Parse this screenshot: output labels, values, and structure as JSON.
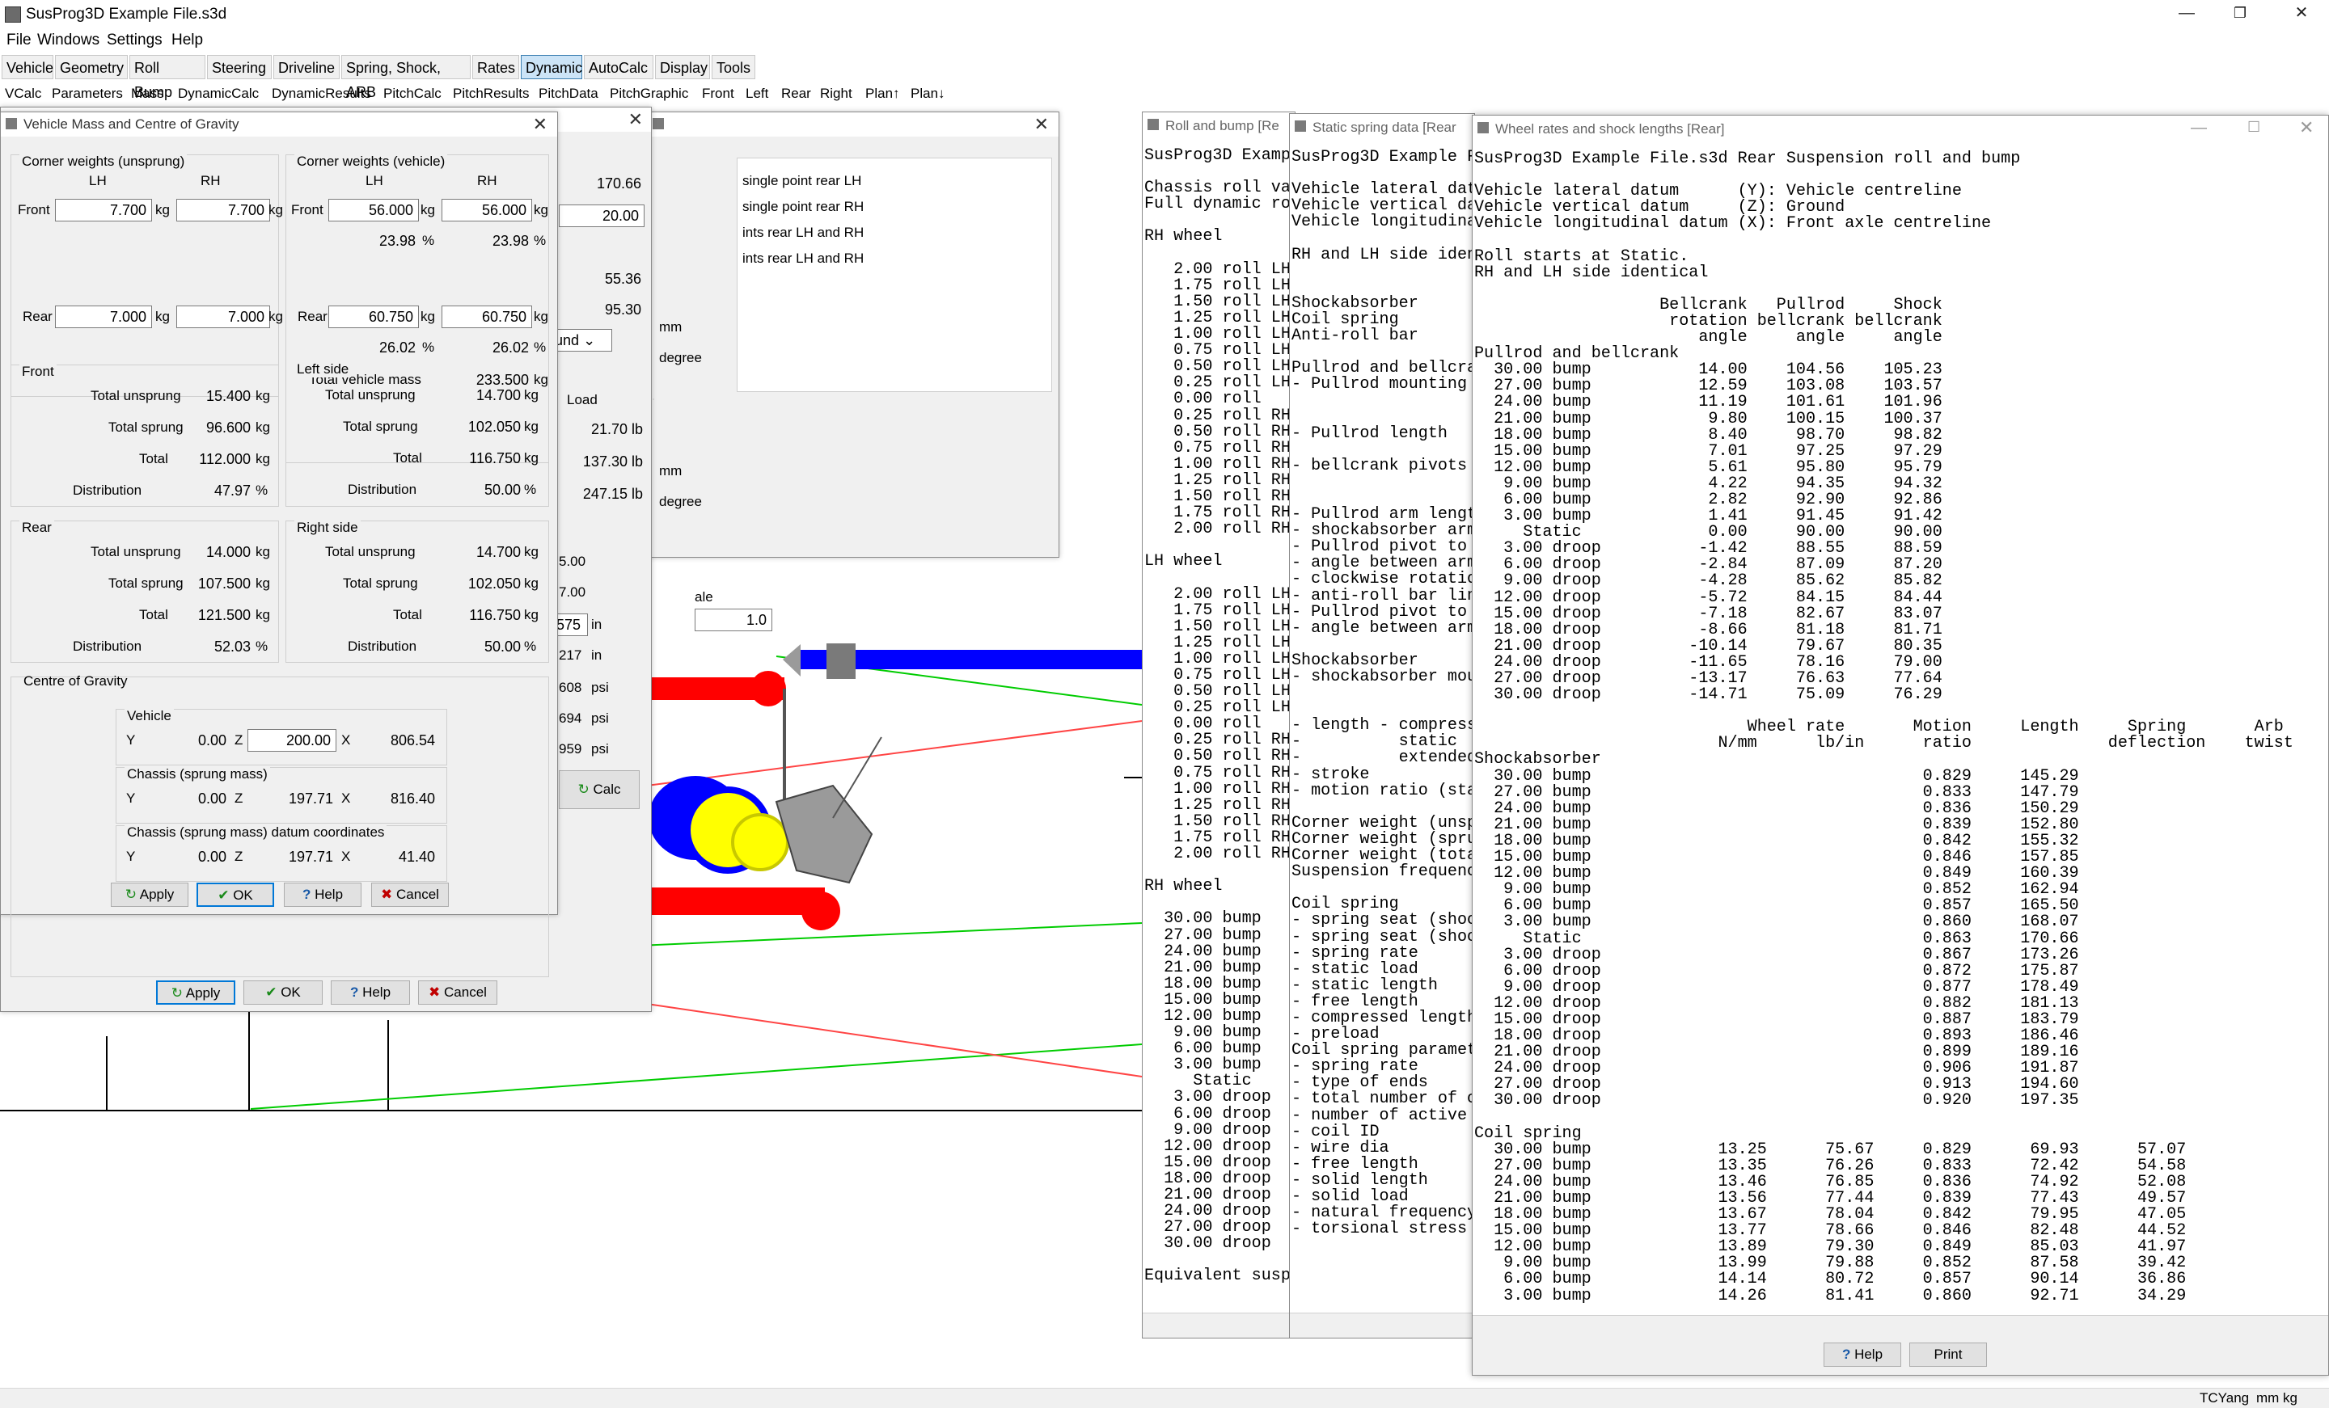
{
  "app": {
    "title": "SusProg3D Example File.s3d",
    "minimize": "—",
    "restore": "❐",
    "close": "✕"
  },
  "menu": [
    "File",
    "Windows",
    "Settings",
    "Help"
  ],
  "toolbar1": [
    "Vehicle",
    "Geometry",
    "Roll Bump",
    "Steering",
    "Driveline",
    "Spring, Shock, ARB",
    "Rates",
    "Dynamic",
    "AutoCalc",
    "Display",
    "Tools"
  ],
  "toolbar1_active": "Dynamic",
  "toolbar2": [
    "VCalc",
    "Parameters",
    "Mass",
    "DynamicCalc",
    "DynamicResults",
    "PitchCalc",
    "PitchResults",
    "PitchData",
    "PitchGraphic",
    "Front",
    "Left",
    "Rear",
    "Right",
    "Plan↑",
    "Plan↓"
  ],
  "bg_dialog_a": {
    "values": [
      "170.66",
      "20.00",
      "55.36",
      "95.30"
    ],
    "unit_mm": "mm",
    "unit_degree": "degree",
    "combo": "und",
    "load_label": "Load",
    "loads": [
      "21.70 lb",
      "137.30 lb",
      "247.15 lb"
    ],
    "unit_mm2": "mm",
    "unit_degree2": "degree",
    "partial": [
      "5.00",
      "7.00",
      "575",
      "217",
      "608",
      "694",
      "959"
    ],
    "partial_units": [
      "in",
      "in",
      "psi",
      "psi",
      "psi"
    ],
    "calc": "Calc",
    "ale": "ale",
    "scale_value": "1.0"
  },
  "bg_dialog_b": {
    "items": [
      "single point rear LH",
      "single point rear RH",
      "ints rear LH and RH",
      "ints rear LH and RH"
    ]
  },
  "bg_dialog_buttons": {
    "apply": "Apply",
    "ok": "OK",
    "help": "Help",
    "cancel": "Cancel"
  },
  "mass_dialog": {
    "title": "Vehicle Mass and Centre of Gravity",
    "cw_unsprung": {
      "label": "Corner weights (unsprung)",
      "lh": "LH",
      "rh": "RH",
      "front": "Front",
      "rear": "Rear",
      "front_lh": "7.700",
      "front_rh": "7.700",
      "rear_lh": "7.000",
      "rear_rh": "7.000",
      "unit": "kg"
    },
    "cw_vehicle": {
      "label": "Corner weights (vehicle)",
      "lh": "LH",
      "rh": "RH",
      "front": "Front",
      "rear": "Rear",
      "front_lh": "56.000",
      "front_rh": "56.000",
      "front_lh_pct": "23.98",
      "front_rh_pct": "23.98",
      "rear_lh": "60.750",
      "rear_rh": "60.750",
      "rear_lh_pct": "26.02",
      "rear_rh_pct": "26.02",
      "total_label": "Total vehicle mass",
      "total": "233.500",
      "unit": "kg",
      "pct": "%"
    },
    "front": {
      "label": "Front",
      "tu_l": "Total unsprung",
      "tu": "15.400",
      "ts_l": "Total sprung",
      "ts": "96.600",
      "t_l": "Total",
      "t": "112.000",
      "d_l": "Distribution",
      "d": "47.97"
    },
    "left": {
      "label": "Left side",
      "tu_l": "Total unsprung",
      "tu": "14.700",
      "ts_l": "Total sprung",
      "ts": "102.050",
      "t_l": "Total",
      "t": "116.750",
      "d_l": "Distribution",
      "d": "50.00"
    },
    "rear": {
      "label": "Rear",
      "tu_l": "Total unsprung",
      "tu": "14.000",
      "ts_l": "Total sprung",
      "ts": "107.500",
      "t_l": "Total",
      "t": "121.500",
      "d_l": "Distribution",
      "d": "52.03"
    },
    "right": {
      "label": "Right side",
      "tu_l": "Total unsprung",
      "tu": "14.700",
      "ts_l": "Total sprung",
      "ts": "102.050",
      "t_l": "Total",
      "t": "116.750",
      "d_l": "Distribution",
      "d": "50.00"
    },
    "cog": {
      "label": "Centre of Gravity",
      "vehicle": "Vehicle",
      "v_y": "0.00",
      "v_z": "200.00",
      "v_x": "806.54",
      "chassis": "Chassis (sprung mass)",
      "c_y": "0.00",
      "c_z": "197.71",
      "c_x": "816.40",
      "datum": "Chassis (sprung mass) datum coordinates",
      "d_y": "0.00",
      "d_z": "197.71",
      "d_x": "41.40",
      "y": "Y",
      "z": "Z",
      "x": "X"
    },
    "buttons": {
      "apply": "Apply",
      "ok": "OK",
      "help": "Help",
      "cancel": "Cancel"
    }
  },
  "roll_window": {
    "title": "Roll and bump [Re",
    "text": "SusProg3D Examp\n\nChassis roll va\nFull dynamic ro\n\nRH wheel\n\n   2.00 roll LH\n   1.75 roll LH\n   1.50 roll LH\n   1.25 roll LH\n   1.00 roll LH\n   0.75 roll LH\n   0.50 roll LH\n   0.25 roll LH\n   0.00 roll\n   0.25 roll RH\n   0.50 roll RH\n   0.75 roll RH\n   1.00 roll RH\n   1.25 roll RH\n   1.50 roll RH\n   1.75 roll RH\n   2.00 roll RH\n\nLH wheel\n\n   2.00 roll LH\n   1.75 roll LH\n   1.50 roll LH\n   1.25 roll LH\n   1.00 roll LH\n   0.75 roll LH\n   0.50 roll LH\n   0.25 roll LH\n   0.00 roll\n   0.25 roll RH\n   0.50 roll RH\n   0.75 roll RH\n   1.00 roll RH\n   1.25 roll RH\n   1.50 roll RH\n   1.75 roll RH\n   2.00 roll RH\n\nRH wheel\n\n  30.00 bump\n  27.00 bump\n  24.00 bump\n  21.00 bump\n  18.00 bump\n  15.00 bump\n  12.00 bump\n   9.00 bump\n   6.00 bump\n   3.00 bump\n     Static\n   3.00 droop\n   6.00 droop\n   9.00 droop\n  12.00 droop\n  15.00 droop\n  18.00 droop\n  21.00 droop\n  24.00 droop\n  27.00 droop\n  30.00 droop\n\nEquivalent susp"
  },
  "static_window": {
    "title": "Static spring data [Rear",
    "text": "SusProg3D Example F\n\nVehicle lateral dat\nVehicle vertical da\nVehicle longitudina\n\nRH and LH side iden\n\n\nShockabsorber\nCoil spring\nAnti-roll bar\n\nPullrod and bellcra\n- Pullrod mounting \n\n\n- Pullrod length\n\n- bellcrank pivots \n\n\n- Pullrod arm lengt\n- shockabsorber arm\n- Pullrod pivot to \n- angle between arm\n- clockwise rotatio\n- anti-roll bar lin\n- Pullrod pivot to \n- angle between arm\n\nShockabsorber\n- shockabsorber mou\n\n\n- length - compress\n-          static\n-          extended\n- stroke\n- motion ratio (sta\n\nCorner weight (unsp\nCorner weight (spru\nCorner weight (tota\nSuspension frequenc\n\nCoil spring\n- spring seat (shoc\n- spring seat (shoc\n- spring rate\n- static load\n- static length\n- free length\n- compressed length\n- preload\nCoil spring paramet\n- spring rate\n- type of ends\n- total number of c\n- number of active \n- coil ID\n- wire dia\n- free length\n- solid length\n- solid load\n- natural frequency\n- torsional stress "
  },
  "wheel_window": {
    "title": "Wheel rates and shock lengths [Rear]",
    "help": "Help",
    "print": "Print",
    "text": "SusProg3D Example File.s3d Rear Suspension roll and bump\n\nVehicle lateral datum      (Y): Vehicle centreline\nVehicle vertical datum     (Z): Ground\nVehicle longitudinal datum (X): Front axle centreline\n\nRoll starts at Static.\nRH and LH side identical\n\n                   Bellcrank   Pullrod     Shock\n                    rotation bellcrank bellcrank\n                       angle     angle     angle\nPullrod and bellcrank\n  30.00 bump           14.00    104.56    105.23\n  27.00 bump           12.59    103.08    103.57\n  24.00 bump           11.19    101.61    101.96\n  21.00 bump            9.80    100.15    100.37\n  18.00 bump            8.40     98.70     98.82\n  15.00 bump            7.01     97.25     97.29\n  12.00 bump            5.61     95.80     95.79\n   9.00 bump            4.22     94.35     94.32\n   6.00 bump            2.82     92.90     92.86\n   3.00 bump            1.41     91.45     91.42\n     Static             0.00     90.00     90.00\n   3.00 droop          -1.42     88.55     88.59\n   6.00 droop          -2.84     87.09     87.20\n   9.00 droop          -4.28     85.62     85.82\n  12.00 droop          -5.72     84.15     84.44\n  15.00 droop          -7.18     82.67     83.07\n  18.00 droop          -8.66     81.18     81.71\n  21.00 droop         -10.14     79.67     80.35\n  24.00 droop         -11.65     78.16     79.00\n  27.00 droop         -13.17     76.63     77.64\n  30.00 droop         -14.71     75.09     76.29\n\n                            Wheel rate       Motion     Length     Spring       Arb\n                         N/mm      lb/in      ratio              deflection    twist\nShockabsorber\n  30.00 bump                                  0.829     145.29\n  27.00 bump                                  0.833     147.79\n  24.00 bump                                  0.836     150.29\n  21.00 bump                                  0.839     152.80\n  18.00 bump                                  0.842     155.32\n  15.00 bump                                  0.846     157.85\n  12.00 bump                                  0.849     160.39\n   9.00 bump                                  0.852     162.94\n   6.00 bump                                  0.857     165.50\n   3.00 bump                                  0.860     168.07\n     Static                                   0.863     170.66\n   3.00 droop                                 0.867     173.26\n   6.00 droop                                 0.872     175.87\n   9.00 droop                                 0.877     178.49\n  12.00 droop                                 0.882     181.13\n  15.00 droop                                 0.887     183.79\n  18.00 droop                                 0.893     186.46\n  21.00 droop                                 0.899     189.16\n  24.00 droop                                 0.906     191.87\n  27.00 droop                                 0.913     194.60\n  30.00 droop                                 0.920     197.35\n\nCoil spring\n  30.00 bump             13.25      75.67     0.829      69.93      57.07\n  27.00 bump             13.35      76.26     0.833      72.42      54.58\n  24.00 bump             13.46      76.85     0.836      74.92      52.08\n  21.00 bump             13.56      77.44     0.839      77.43      49.57\n  18.00 bump             13.67      78.04     0.842      79.95      47.05\n  15.00 bump             13.77      78.66     0.846      82.48      44.52\n  12.00 bump             13.89      79.30     0.849      85.03      41.97\n   9.00 bump             13.99      79.88     0.852      87.58      39.42\n   6.00 bump             14.14      80.72     0.857      90.14      36.86\n   3.00 bump             14.26      81.41     0.860      92.71      34.29"
  },
  "status": {
    "user": "TCYang",
    "units": "mm kg"
  },
  "colors": {
    "blue_bar": "#0000ff",
    "red_part": "#ff0000",
    "yellow_part": "#ffff00",
    "accent": "#0078d7"
  }
}
